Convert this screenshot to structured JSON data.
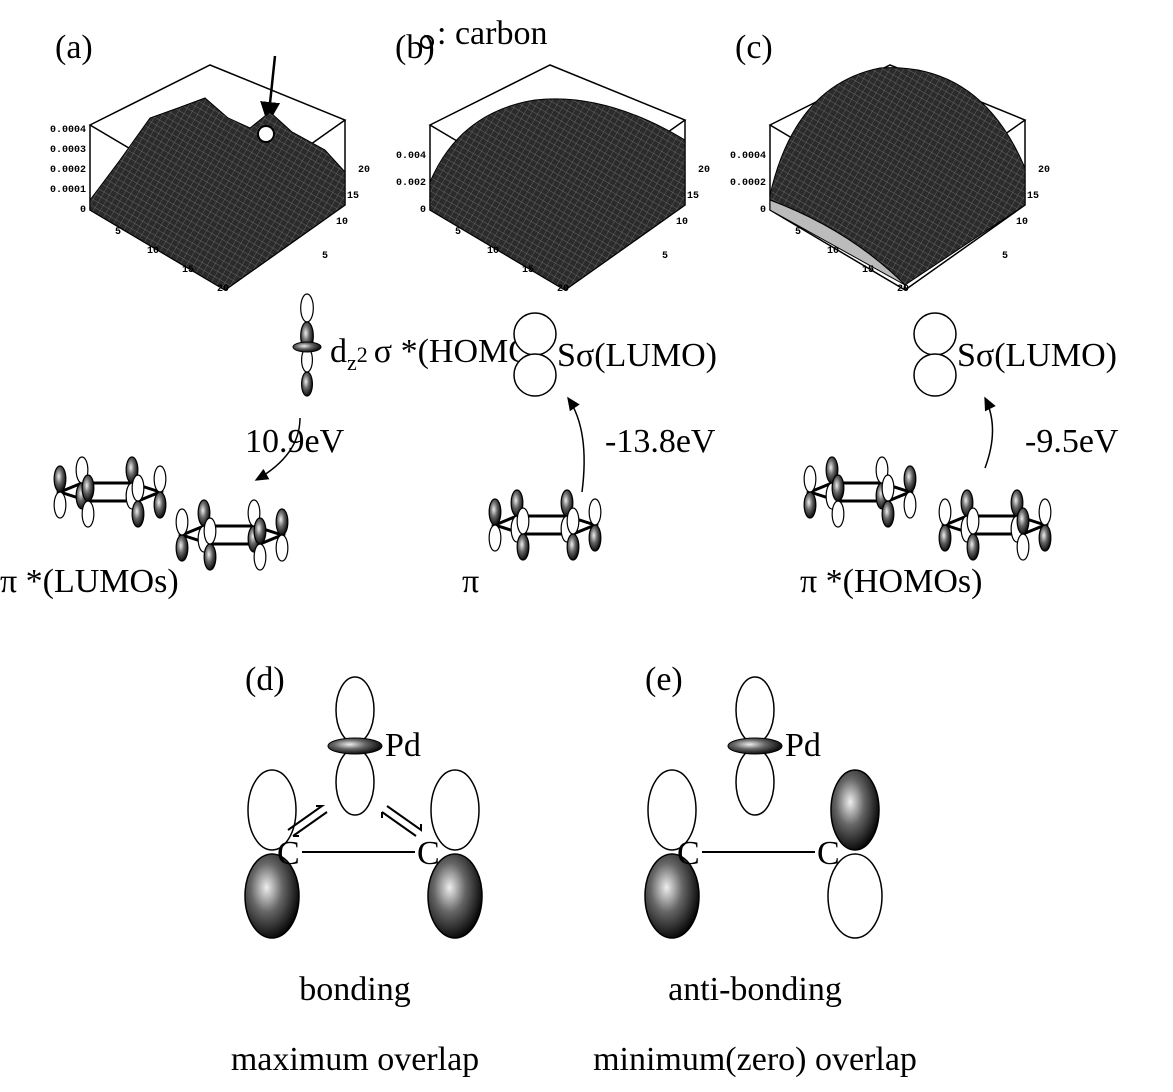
{
  "panels": [
    {
      "label": "(a)",
      "z_ticks": [
        "0.0004",
        "0.0003",
        "0.0002",
        "0.0001",
        "0"
      ],
      "x_ticks": [
        "5",
        "10",
        "15",
        "20"
      ],
      "y_ticks": [
        "20",
        "15",
        "10",
        "5"
      ],
      "orbital_label": [
        "d",
        "z",
        "2",
        "σ *(HOMO)"
      ],
      "energy": "10.9eV",
      "bottom_label": "π *(LUMOs)"
    },
    {
      "label": "(b)",
      "z_ticks": [
        "0.004",
        "0.002",
        "0"
      ],
      "x_ticks": [
        "5",
        "10",
        "15",
        "20"
      ],
      "y_ticks": [
        "20",
        "15",
        "10",
        "5"
      ],
      "orbital_label": [
        "Sσ(LUMO)"
      ],
      "energy": "-13.8eV",
      "bottom_label": "π"
    },
    {
      "label": "(c)",
      "z_ticks": [
        "0.0004",
        "0.0002",
        "0"
      ],
      "x_ticks": [
        "5",
        "10",
        "15",
        "20"
      ],
      "y_ticks": [
        "20",
        "15",
        "10",
        "5"
      ],
      "orbital_label": [
        "Sσ(LUMO)"
      ],
      "energy": "-9.5eV",
      "bottom_label": "π *(HOMOs)"
    }
  ],
  "carbon_note": ": carbon",
  "bonding": {
    "label": "(d)",
    "metal": "Pd",
    "atoms": [
      "C",
      "C"
    ],
    "caption": "bonding",
    "subcaption": "maximum overlap"
  },
  "antibonding": {
    "label": "(e)",
    "metal": "Pd",
    "atoms": [
      "C",
      "C"
    ],
    "caption": "anti-bonding",
    "subcaption": "minimum(zero) overlap"
  }
}
